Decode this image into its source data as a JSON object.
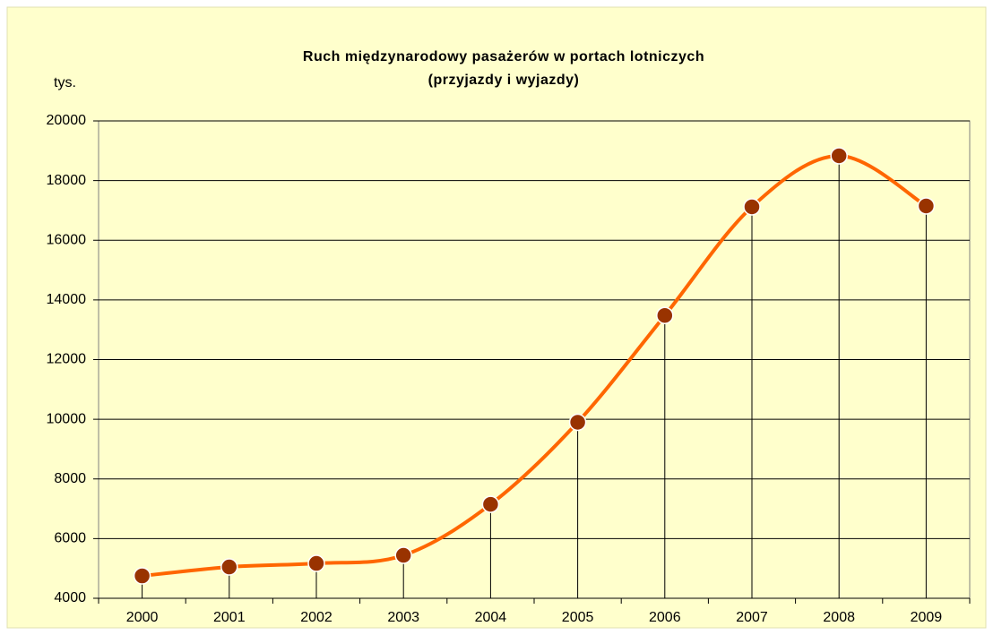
{
  "chart_data": {
    "type": "line",
    "title": "Ruch międzynarodowy pasażerów w portach lotniczych",
    "subtitle": "(przyjazdy i wyjazdy)",
    "y_label": "tys.",
    "categories": [
      "2000",
      "2001",
      "2002",
      "2003",
      "2004",
      "2005",
      "2006",
      "2007",
      "2008",
      "2009"
    ],
    "series": [
      {
        "name": "Ruch międzynarodowy",
        "color": "#ff6600",
        "marker_color": "#993300",
        "values": [
          4750,
          5050,
          5170,
          5440,
          7150,
          9900,
          13480,
          17120,
          18830,
          17150
        ]
      }
    ],
    "ylim": [
      4000,
      20000
    ],
    "yticks": [
      4000,
      6000,
      8000,
      10000,
      12000,
      14000,
      16000,
      18000,
      20000
    ],
    "grid": true,
    "drop_lines": true,
    "smooth": true,
    "legend": false
  }
}
